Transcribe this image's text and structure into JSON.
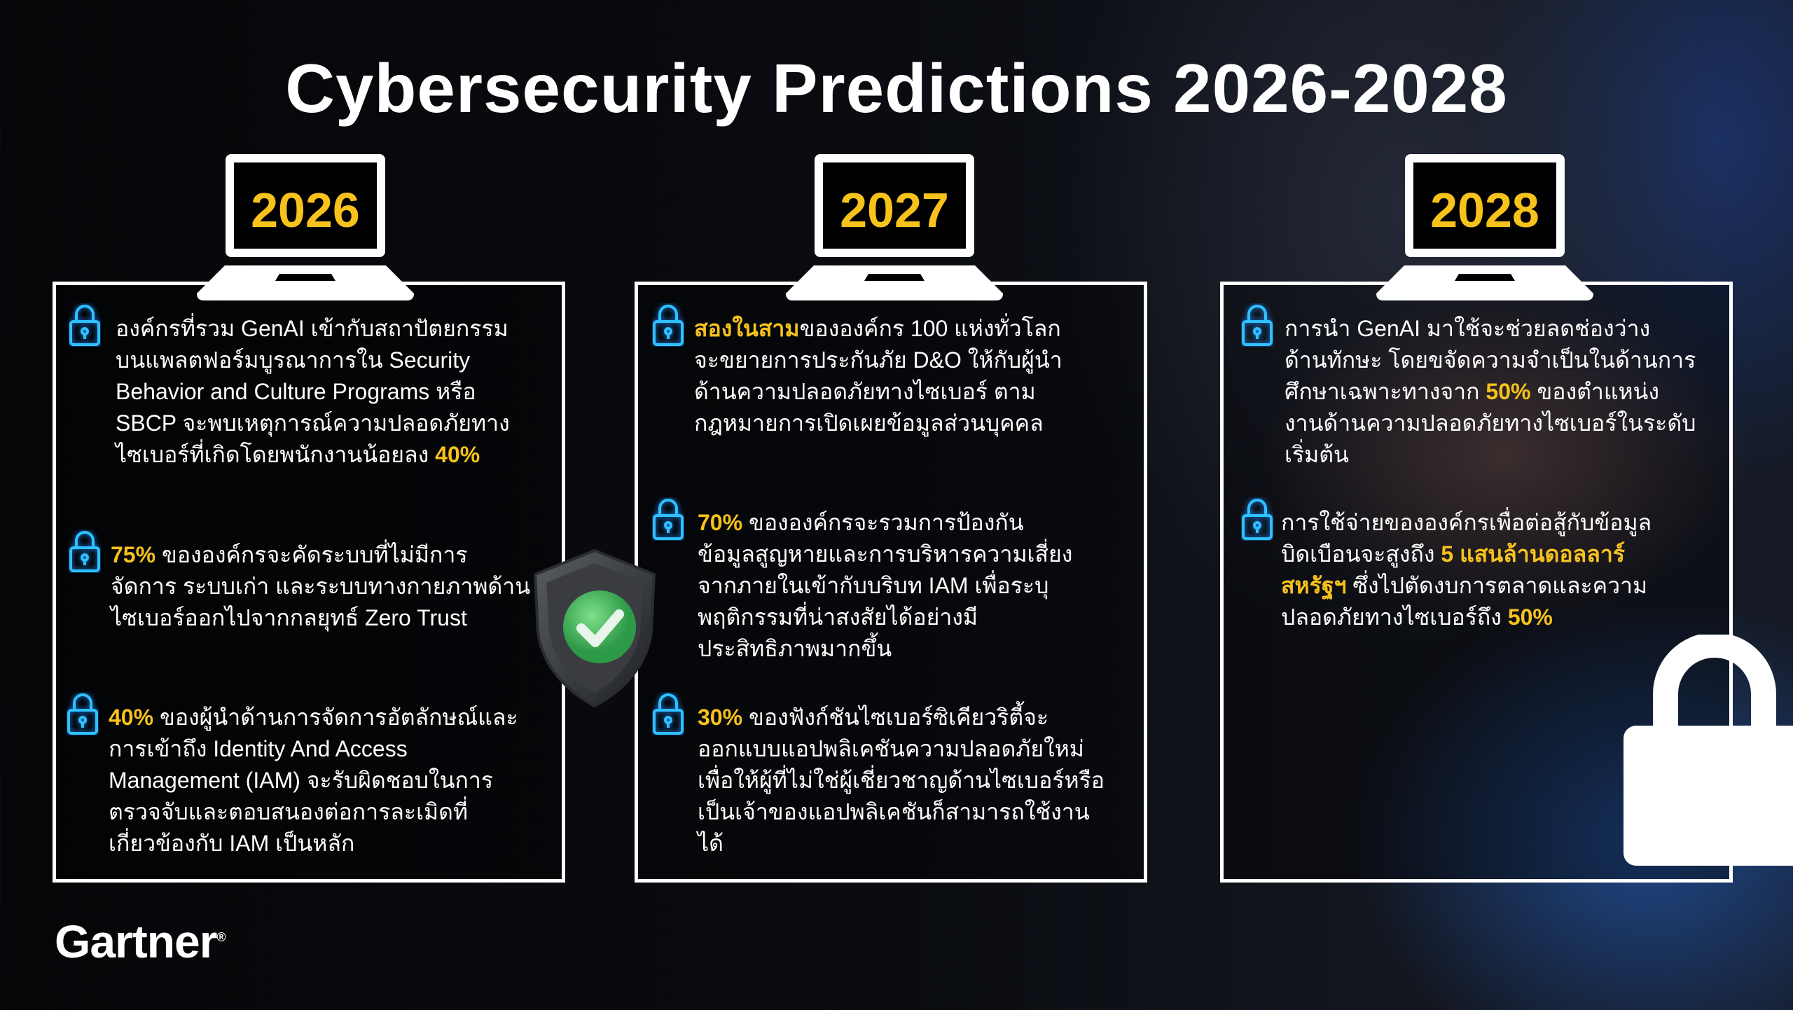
{
  "title": "Cybersecurity Predictions 2026-2028",
  "logo": "Gartner",
  "colors": {
    "highlight": "#f7c21b",
    "lock_glow": "#29b6ff",
    "background": "#07080b"
  },
  "columns": [
    {
      "year": "2026",
      "items": [
        {
          "icon": "padlock-icon",
          "lines": [
            [
              {
                "text": "องค์กรที่รวม GenAI เข้ากับสถาปัตยกรรม"
              }
            ],
            [
              {
                "text": "บนแพลตฟอร์มบูรณาการใน Security"
              }
            ],
            [
              {
                "text": "Behavior and Culture Programs หรือ"
              }
            ],
            [
              {
                "text": "SBCP จะพบเหตุการณ์ความปลอดภัยทาง"
              }
            ],
            [
              {
                "text": "ไซเบอร์ที่เกิดโดยพนักงานน้อยลง "
              },
              {
                "text": "40%",
                "highlight": true
              }
            ]
          ]
        },
        {
          "icon": "padlock-icon",
          "lines": [
            [
              {
                "text": "75%",
                "highlight": true
              },
              {
                "text": " ขององค์กรจะคัดระบบที่ไม่มีการ"
              }
            ],
            [
              {
                "text": "จัดการ ระบบเก่า และระบบทางกายภาพด้าน"
              }
            ],
            [
              {
                "text": "ไซเบอร์ออกไปจากกลยุทธ์ Zero Trust"
              }
            ]
          ]
        },
        {
          "icon": "padlock-icon",
          "lines": [
            [
              {
                "text": "40%",
                "highlight": true
              },
              {
                "text": " ของผู้นำด้านการจัดการอัตลักษณ์และ"
              }
            ],
            [
              {
                "text": "การเข้าถึง Identity And Access"
              }
            ],
            [
              {
                "text": "Management (IAM) จะรับผิดชอบในการ"
              }
            ],
            [
              {
                "text": "ตรวจจับและตอบสนองต่อการละเมิดที่"
              }
            ],
            [
              {
                "text": "เกี่ยวข้องกับ IAM เป็นหลัก"
              }
            ]
          ]
        }
      ]
    },
    {
      "year": "2027",
      "items": [
        {
          "icon": "padlock-icon",
          "lines": [
            [
              {
                "text": "สองในสาม",
                "highlight": true
              },
              {
                "text": "ขององค์กร 100 แห่งทั่วโลก"
              }
            ],
            [
              {
                "text": "จะขยายการประกันภัย D&O ให้กับผู้นำ"
              }
            ],
            [
              {
                "text": "ด้านความปลอดภัยทางไซเบอร์ ตาม"
              }
            ],
            [
              {
                "text": "กฎหมายการเปิดเผยข้อมูลส่วนบุคคล"
              }
            ]
          ]
        },
        {
          "icon": "padlock-icon",
          "lines": [
            [
              {
                "text": "70%",
                "highlight": true
              },
              {
                "text": " ขององค์กรจะรวมการป้องกัน"
              }
            ],
            [
              {
                "text": "ข้อมูลสูญหายและการบริหารความเสี่ยง"
              }
            ],
            [
              {
                "text": "จากภายในเข้ากับบริบท IAM เพื่อระบุ"
              }
            ],
            [
              {
                "text": "พฤติกรรมที่น่าสงสัยได้อย่างมี"
              }
            ],
            [
              {
                "text": "ประสิทธิภาพมากขึ้น"
              }
            ]
          ]
        },
        {
          "icon": "padlock-icon",
          "lines": [
            [
              {
                "text": "30%",
                "highlight": true
              },
              {
                "text": " ของฟังก์ชันไซเบอร์ซิเคียวริตี้จะ"
              }
            ],
            [
              {
                "text": "ออกแบบแอปพลิเคชันความปลอดภัยใหม่"
              }
            ],
            [
              {
                "text": "เพื่อให้ผู้ที่ไม่ใช่ผู้เชี่ยวชาญด้านไซเบอร์หรือ"
              }
            ],
            [
              {
                "text": "เป็นเจ้าของแอปพลิเคชันก็สามารถใช้งาน"
              }
            ],
            [
              {
                "text": "ได้"
              }
            ]
          ]
        }
      ]
    },
    {
      "year": "2028",
      "items": [
        {
          "icon": "padlock-icon",
          "lines": [
            [
              {
                "text": "การนำ GenAI มาใช้จะช่วยลดช่องว่าง"
              }
            ],
            [
              {
                "text": "ด้านทักษะ โดยขจัดความจำเป็นในด้านการ"
              }
            ],
            [
              {
                "text": "ศึกษาเฉพาะทางจาก "
              },
              {
                "text": "50%",
                "highlight": true
              },
              {
                "text": " ของตำแหน่ง"
              }
            ],
            [
              {
                "text": "งานด้านความปลอดภัยทางไซเบอร์ในระดับ"
              }
            ],
            [
              {
                "text": "เริ่มต้น"
              }
            ]
          ]
        },
        {
          "icon": "padlock-icon",
          "lines": [
            [
              {
                "text": "การใช้จ่ายขององค์กรเพื่อต่อสู้กับข้อมูล"
              }
            ],
            [
              {
                "text": "บิดเบือนจะสูงถึง "
              },
              {
                "text": "5 แสนล้านดอลลาร์",
                "highlight": true
              }
            ],
            [
              {
                "text": "สหรัฐฯ",
                "highlight": true
              },
              {
                "text": " ซึ่งไปตัดงบการตลาดและความ"
              }
            ],
            [
              {
                "text": "ปลอดภัยทางไซเบอร์ถึง "
              },
              {
                "text": "50%",
                "highlight": true
              }
            ]
          ]
        }
      ]
    }
  ]
}
